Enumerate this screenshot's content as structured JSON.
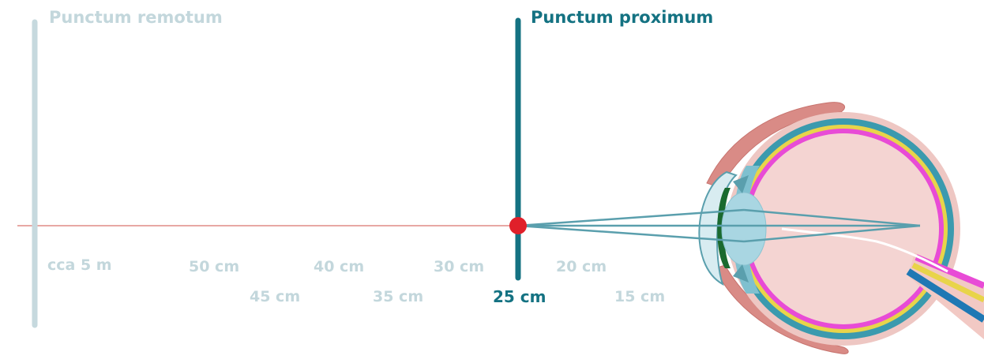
{
  "labels": {
    "punctum_remotum": "Punctum remotum",
    "punctum_proximum": "Punctum proximum"
  },
  "distances": {
    "d_cca5m": "cca 5 m",
    "d_50": "50 cm",
    "d_45": "45 cm",
    "d_40": "40 cm",
    "d_35": "35 cm",
    "d_30": "30 cm",
    "d_25": "25 cm",
    "d_20": "20 cm",
    "d_15": "15 cm"
  },
  "colors": {
    "faded_text": "#c3d7dc",
    "faded_bar": "#c6d9de",
    "accent_teal": "#147282",
    "near_point_dot": "#e0202a",
    "axis_line": "#e8a8a4",
    "light_rays": "#5a9fad",
    "eye_interior": "#f4d4d2",
    "eyelid": "#d98b86",
    "sclera_teal": "#3b9aae",
    "retina_magenta": "#e84bd6",
    "choroid_yellow": "#e8d44a",
    "lens_blue": "#a9d6e2",
    "optic_nerve_blue": "#1f78b4"
  }
}
